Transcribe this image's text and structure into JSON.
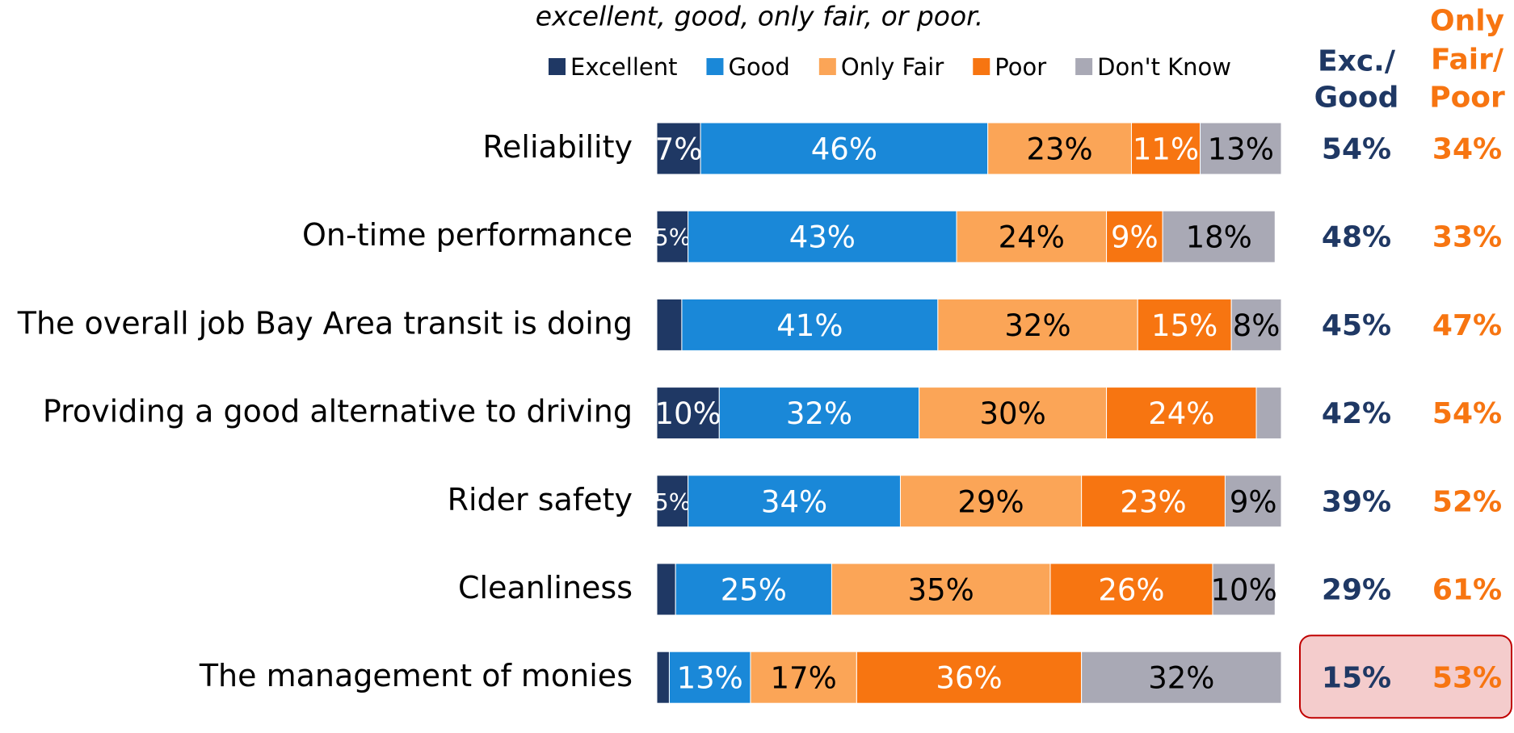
{
  "chart_data": {
    "type": "stacked_bar_horizontal",
    "subtitle": "excellent, good, only fair, or poor.",
    "categories": [
      "Reliability",
      "On-time performance",
      "The overall job Bay Area transit is doing",
      "Providing a good alternative to driving",
      "Rider safety",
      "Cleanliness",
      "The management of monies"
    ],
    "xlim": [
      0,
      100
    ],
    "series": [
      {
        "name": "Excellent",
        "color": "#1f3864",
        "label_color": "#ffffff",
        "values": [
          7,
          5,
          4,
          10,
          5,
          3,
          2
        ],
        "value_labels": [
          "7%",
          "5%",
          null,
          "10%",
          "5%",
          null,
          null
        ]
      },
      {
        "name": "Good",
        "color": "#1a88d8",
        "label_color": "#ffffff",
        "values": [
          46,
          43,
          41,
          32,
          34,
          25,
          13
        ],
        "value_labels": [
          "46%",
          "43%",
          "41%",
          "32%",
          "34%",
          "25%",
          "13%"
        ]
      },
      {
        "name": "Only Fair",
        "color": "#fba557",
        "label_color": "#000000",
        "values": [
          23,
          24,
          32,
          30,
          29,
          35,
          17
        ],
        "value_labels": [
          "23%",
          "24%",
          "32%",
          "30%",
          "29%",
          "35%",
          "17%"
        ]
      },
      {
        "name": "Poor",
        "color": "#f77511",
        "label_color": "#ffffff",
        "values": [
          11,
          9,
          15,
          24,
          23,
          26,
          36
        ],
        "value_labels": [
          "11%",
          "9%",
          "15%",
          "24%",
          "23%",
          "26%",
          "36%"
        ]
      },
      {
        "name": "Don't Know",
        "color": "#a9a9b5",
        "label_color": "#000000",
        "values": [
          13,
          18,
          8,
          4,
          9,
          10,
          32
        ],
        "value_labels": [
          "13%",
          "18%",
          "8%",
          null,
          "9%",
          "10%",
          "32%"
        ]
      }
    ],
    "net_columns": [
      {
        "header": [
          "Exc./",
          "Good"
        ],
        "color": "#1f3864",
        "values": [
          54,
          48,
          45,
          42,
          39,
          29,
          15
        ],
        "value_labels": [
          "54%",
          "48%",
          "45%",
          "42%",
          "39%",
          "29%",
          "15%"
        ]
      },
      {
        "header": [
          "Only",
          "Fair/",
          "Poor"
        ],
        "color": "#f77511",
        "values": [
          34,
          33,
          47,
          54,
          52,
          61,
          53
        ],
        "value_labels": [
          "34%",
          "33%",
          "47%",
          "54%",
          "52%",
          "61%",
          "53%"
        ]
      }
    ],
    "highlight_row": 6
  }
}
